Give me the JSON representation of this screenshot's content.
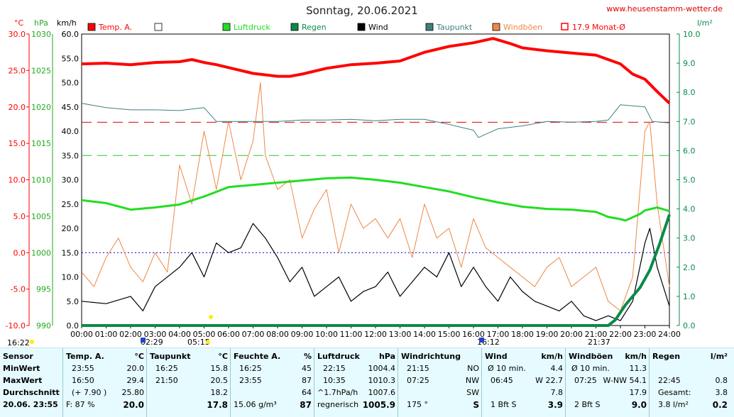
{
  "title": "Sonntag, 20.06.2021",
  "site": "www.heusenstamm-wetter.de",
  "axes": {
    "temp_unit": "°C",
    "hpa_unit": "hPa",
    "kmh_unit": "km/h",
    "rain_unit": "l/m²",
    "temp_ticks": [
      "30.0",
      "25.0",
      "20.0",
      "15.0",
      "10.0",
      "5.0",
      "0.0",
      "-5.0",
      "-10.0"
    ],
    "hpa_ticks": [
      "1030",
      "1025",
      "1020",
      "1015",
      "1010",
      "1005",
      "1000",
      "995",
      "990"
    ],
    "kmh_ticks": [
      "60.0",
      "55.0",
      "50.0",
      "45.0",
      "40.0",
      "35.0",
      "30.0",
      "25.0",
      "20.0",
      "15.0",
      "10.0",
      "5.0",
      "0.0"
    ],
    "rain_ticks": [
      "10.0",
      "9.0",
      "8.0",
      "7.0",
      "6.0",
      "5.0",
      "4.0",
      "3.0",
      "2.0",
      "1.0",
      "0.0"
    ],
    "time_ticks": [
      "00:00",
      "01:00",
      "02:00",
      "03:00",
      "04:00",
      "05:00",
      "06:00",
      "07:00",
      "08:00",
      "09:00",
      "10:00",
      "11:00",
      "12:00",
      "13:00",
      "14:00",
      "15:00",
      "16:00",
      "17:00",
      "18:00",
      "19:00",
      "20:00",
      "21:00",
      "22:00",
      "23:00",
      "24:00"
    ],
    "markers": [
      "16:22",
      "02:29",
      "05:15",
      "16:12",
      "21:37"
    ]
  },
  "legend": [
    {
      "label": "Temp. A.",
      "color": "#ff0000",
      "style": "box"
    },
    {
      "label": "",
      "color": "#ffffff",
      "style": "box"
    },
    {
      "label": "Luftdruck",
      "color": "#22dd22",
      "style": "box"
    },
    {
      "label": "Regen",
      "color": "#0a8a4a",
      "style": "box"
    },
    {
      "label": "Wind",
      "color": "#000000",
      "style": "box"
    },
    {
      "label": "Taupunkt",
      "color": "#3f7f7f",
      "style": "box"
    },
    {
      "label": "Windböen",
      "color": "#ee8844",
      "style": "box"
    },
    {
      "label": "17.9 Monat-Ø",
      "color": "#ff0000",
      "style": "outline"
    }
  ],
  "chart_data": {
    "type": "line",
    "x_range": [
      "00:00",
      "24:00"
    ],
    "ylim_temp": [
      -10,
      30
    ],
    "ylim_pressure": [
      990,
      1030
    ],
    "ylim_wind": [
      0,
      60
    ],
    "ylim_rain": [
      0,
      10
    ],
    "reference_lines": [
      {
        "name": "17.9 Monat-Ø",
        "axis": "temp",
        "value": 17.9
      },
      {
        "axis": "temp",
        "value": 0
      },
      {
        "axis": "wind",
        "value": 35
      }
    ],
    "series": [
      {
        "name": "Temp. A.",
        "axis": "temp",
        "color": "#ff0000",
        "x": [
          0,
          1,
          2,
          3,
          4,
          4.5,
          5,
          5.5,
          6,
          7,
          8,
          8.5,
          9,
          10,
          11,
          12,
          13,
          14,
          15,
          16,
          16.8,
          17.5,
          18,
          19,
          20,
          21,
          22,
          22.5,
          23,
          23.5,
          24
        ],
        "y": [
          25.9,
          26,
          25.8,
          26.1,
          26.2,
          26.5,
          26.1,
          25.8,
          25.4,
          24.6,
          24.2,
          24.2,
          24.5,
          25.3,
          25.8,
          26,
          26.3,
          27.5,
          28.3,
          28.8,
          29.4,
          28.7,
          28.1,
          27.7,
          27.4,
          27.1,
          25.9,
          24.5,
          23.8,
          22.1,
          20.5
        ]
      },
      {
        "name": "Taupunkt",
        "axis": "temp",
        "color": "#3f7f7f",
        "x": [
          0,
          1,
          2,
          3,
          4,
          5,
          5.5,
          6,
          7,
          8,
          9,
          10,
          11,
          12,
          13,
          14,
          15,
          16,
          16.2,
          17,
          18,
          19,
          20,
          21,
          21.5,
          22,
          23,
          23.3,
          24
        ],
        "y": [
          20.5,
          19.9,
          19.6,
          19.6,
          19.5,
          19.9,
          18.0,
          18.0,
          18.0,
          18.0,
          18.2,
          18.2,
          18.3,
          18.1,
          18.3,
          18.3,
          17.6,
          16.8,
          15.8,
          17.0,
          17.4,
          18.0,
          17.9,
          18.0,
          18.2,
          20.3,
          20.0,
          18.0,
          17.8
        ]
      },
      {
        "name": "Luftdruck",
        "axis": "pressure",
        "color": "#22dd22",
        "x": [
          0,
          1,
          2,
          3,
          4,
          5,
          6,
          7,
          8,
          9,
          10,
          11,
          12,
          13,
          14,
          15,
          16,
          17,
          18,
          19,
          20,
          21,
          21.5,
          22,
          22.2,
          22.8,
          23,
          23.5,
          24
        ],
        "y": [
          1007.2,
          1006.8,
          1005.9,
          1006.2,
          1006.6,
          1007.7,
          1009,
          1009.3,
          1009.6,
          1009.9,
          1010.2,
          1010.3,
          1010.0,
          1009.6,
          1009.0,
          1008.4,
          1007.6,
          1006.9,
          1006.3,
          1006.0,
          1005.9,
          1005.6,
          1004.9,
          1004.6,
          1004.4,
          1005.3,
          1005.8,
          1006.2,
          1005.7
        ]
      },
      {
        "name": "Regen",
        "axis": "rain",
        "color": "#0a8a4a",
        "x": [
          0,
          21.5,
          21.8,
          22.2,
          22.8,
          23.2,
          23.6,
          24
        ],
        "y": [
          0,
          0,
          0.2,
          0.7,
          1.3,
          1.9,
          2.8,
          3.8
        ]
      },
      {
        "name": "Wind",
        "axis": "wind",
        "color": "#000000",
        "x": [
          0,
          1,
          2,
          2.5,
          3,
          4,
          4.5,
          5,
          5.5,
          6,
          6.5,
          7,
          7.5,
          8,
          8.5,
          9,
          9.5,
          10,
          10.5,
          11,
          11.5,
          12,
          12.5,
          13,
          13.5,
          14,
          14.5,
          15,
          15.5,
          16,
          16.5,
          17,
          17.5,
          18,
          18.5,
          19,
          19.5,
          20,
          20.5,
          21,
          21.5,
          22,
          22.5,
          23,
          23.2,
          23.5,
          24
        ],
        "y": [
          5,
          4.5,
          6,
          3,
          8,
          12,
          15,
          10,
          17,
          15,
          16,
          21,
          18,
          14,
          9,
          12,
          6,
          8,
          10,
          5,
          7,
          8,
          11,
          6,
          9,
          12,
          10,
          15,
          8,
          12,
          8,
          5,
          10,
          7,
          5,
          4,
          3,
          5,
          2,
          1,
          2,
          1,
          5,
          17,
          20,
          12,
          4
        ]
      },
      {
        "name": "Windböen",
        "axis": "wind",
        "color": "#ee8844",
        "x": [
          0,
          0.5,
          1,
          1.5,
          2,
          2.5,
          3,
          3.5,
          4,
          4.5,
          5,
          5.5,
          6,
          6.5,
          7,
          7.3,
          7.5,
          8,
          8.5,
          9,
          9.5,
          10,
          10.5,
          11,
          11.5,
          12,
          12.5,
          13,
          13.5,
          14,
          14.5,
          15,
          15.5,
          16,
          16.5,
          17,
          17.5,
          18,
          18.5,
          19,
          19.5,
          20,
          20.5,
          21,
          21.5,
          22,
          22.5,
          23,
          23.2,
          23.5,
          24
        ],
        "y": [
          11,
          8,
          14,
          18,
          12,
          9,
          15,
          11,
          33,
          25,
          40,
          28,
          42,
          30,
          38,
          50,
          35,
          28,
          30,
          18,
          24,
          28,
          15,
          25,
          20,
          22,
          18,
          22,
          14,
          25,
          18,
          20,
          12,
          22,
          16,
          14,
          12,
          10,
          8,
          12,
          14,
          8,
          10,
          12,
          5,
          3,
          10,
          40,
          42,
          25,
          8
        ]
      }
    ]
  },
  "info": {
    "labels": {
      "title": "Sensor",
      "min": "MinWert",
      "max": "MaxWert",
      "avg": "Durchschnitt",
      "now": "20.06. 23:55"
    },
    "temp": {
      "title": "Temp. A.",
      "unit": "°C",
      "r1": [
        "23:55",
        "20.0"
      ],
      "r2": [
        "16:50",
        "29.4"
      ],
      "r3": [
        "(+ 7.90 )",
        "25.80"
      ],
      "r4": [
        "F: 87 %",
        "20.0"
      ]
    },
    "taup": {
      "title": "Taupunkt",
      "unit": "°C",
      "r1": [
        "16:25",
        "15.8"
      ],
      "r2": [
        "21:50",
        "20.5"
      ],
      "r3": [
        "",
        "18.2"
      ],
      "r4": [
        "",
        "17.8"
      ]
    },
    "feuchte": {
      "title": "Feuchte A.",
      "unit": "%",
      "r1": [
        "16:25",
        "45"
      ],
      "r2": [
        "23:55",
        "87"
      ],
      "r3": [
        "",
        "64"
      ],
      "r4": [
        "15.06 g/m³",
        "87"
      ]
    },
    "druck": {
      "title": "Luftdruck",
      "unit": "hPa",
      "r1": [
        "22:15",
        "1004.4"
      ],
      "r2": [
        "10:35",
        "1010.3"
      ],
      "r3": [
        "^1.7hPa/h",
        "1007.6"
      ],
      "r4": [
        "regnerisch",
        "1005.9"
      ]
    },
    "richtung": {
      "title": "Windrichtung",
      "r1": [
        "21:15",
        "NO"
      ],
      "r2": [
        "07:25",
        "NW"
      ],
      "r3": [
        "",
        "SW"
      ],
      "r4": [
        "175 °",
        "S"
      ]
    },
    "wind": {
      "title": "Wind",
      "unit": "km/h",
      "r1": [
        "Ø 10 min.",
        "4.4"
      ],
      "r2": [
        "06:45",
        "W 22.7"
      ],
      "r3": [
        "",
        "7.8"
      ],
      "r4": [
        "1 Bft S",
        "3.9"
      ]
    },
    "boeen": {
      "title": "Windböen",
      "unit": "km/h",
      "r1": [
        "Ø 10 min.",
        "11.3"
      ],
      "r2": [
        "07:25",
        "W-NW 54.1"
      ],
      "r3": [
        "",
        "17.9"
      ],
      "r4": [
        "2 Bft S",
        "9.0"
      ]
    },
    "regen": {
      "title": "Regen",
      "unit": "l/m²",
      "r1": [
        "",
        ""
      ],
      "r2": [
        "22:45",
        "0.8"
      ],
      "r3": [
        "Gesamt:",
        "3.8"
      ],
      "r4": [
        "3.8 l/m²",
        "0.2"
      ]
    }
  }
}
